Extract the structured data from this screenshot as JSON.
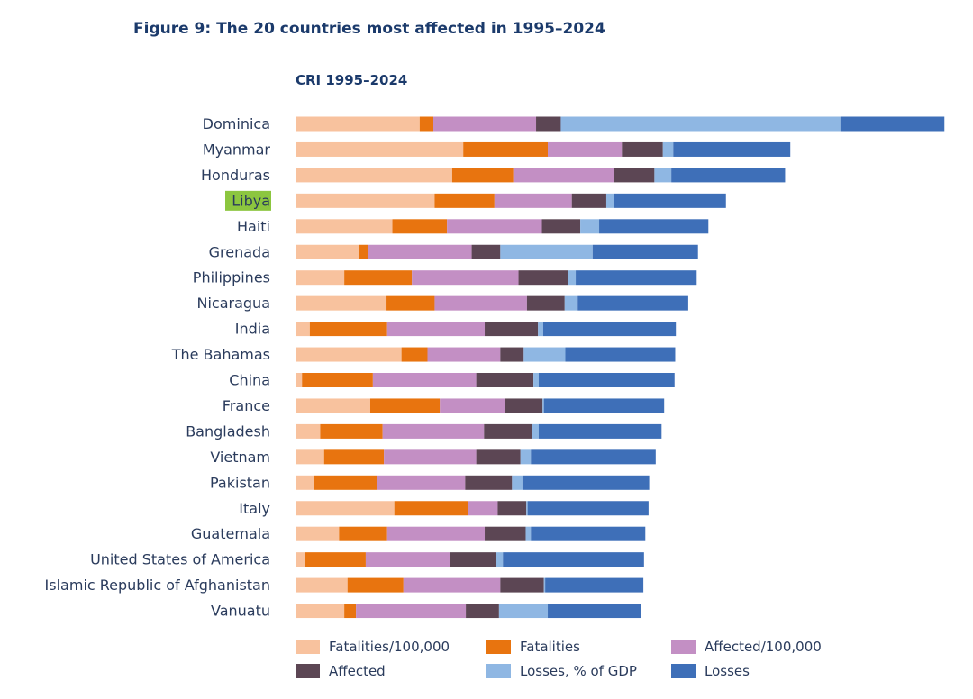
{
  "figure_title": "Figure 9: The 20 countries most affected in 1995–2024",
  "chart_data": {
    "type": "bar",
    "orientation": "horizontal",
    "stacked": true,
    "title": "CRI 1995–2024",
    "xlabel": "",
    "ylabel": "",
    "grid": false,
    "legend_position": "bottom",
    "highlighted_category": "Libya",
    "highlight_color": "#8cc63f",
    "categories": [
      "Dominica",
      "Myanmar",
      "Honduras",
      "Libya",
      "Haiti",
      "Grenada",
      "Philippines",
      "Nicaragua",
      "India",
      "The Bahamas",
      "China",
      "France",
      "Bangladesh",
      "Vietnam",
      "Pakistan",
      "Italy",
      "Guatemala",
      "United States of America",
      "Islamic Republic of Afghanistan",
      "Vanuatu"
    ],
    "series": [
      {
        "name": "Fatalities/100,000",
        "color": "#f8c29e",
        "values": [
          19.1,
          25.8,
          24.1,
          21.4,
          14.9,
          9.8,
          7.5,
          14.0,
          2.2,
          16.3,
          1.0,
          11.5,
          3.8,
          4.4,
          2.9,
          15.2,
          6.7,
          1.5,
          8.0,
          7.5
        ]
      },
      {
        "name": "Fatalities",
        "color": "#e8740f",
        "values": [
          2.1,
          13.0,
          9.4,
          9.2,
          8.4,
          1.3,
          10.4,
          7.4,
          11.9,
          4.0,
          10.9,
          10.7,
          9.6,
          9.2,
          9.7,
          11.3,
          7.4,
          9.3,
          8.6,
          1.8
        ]
      },
      {
        "name": "Affected/100,000",
        "color": "#c38fc4",
        "values": [
          15.8,
          11.4,
          15.5,
          11.9,
          14.6,
          16.0,
          16.4,
          14.2,
          15.0,
          11.2,
          15.9,
          10.0,
          15.6,
          14.2,
          13.5,
          4.6,
          15.0,
          12.9,
          14.9,
          16.9
        ]
      },
      {
        "name": "Affected",
        "color": "#5c4654",
        "values": [
          3.8,
          6.3,
          6.2,
          5.3,
          5.9,
          4.4,
          7.6,
          5.8,
          8.2,
          3.6,
          8.8,
          5.8,
          7.4,
          6.8,
          7.2,
          4.4,
          6.3,
          7.2,
          6.7,
          5.1
        ]
      },
      {
        "name": "Losses, % of GDP",
        "color": "#8fb7e3",
        "values": [
          43.0,
          1.6,
          2.6,
          1.2,
          2.9,
          14.2,
          1.2,
          2.0,
          0.8,
          6.4,
          0.8,
          0.2,
          1.0,
          1.6,
          1.6,
          0.2,
          0.8,
          1.0,
          0.2,
          7.5
        ]
      },
      {
        "name": "Losses",
        "color": "#3e6fb8",
        "values": [
          16.0,
          18.0,
          17.5,
          17.2,
          16.8,
          16.2,
          18.6,
          17.0,
          20.4,
          16.9,
          20.9,
          18.5,
          18.9,
          19.2,
          19.5,
          18.6,
          17.6,
          21.7,
          15.1,
          14.4
        ]
      }
    ]
  }
}
